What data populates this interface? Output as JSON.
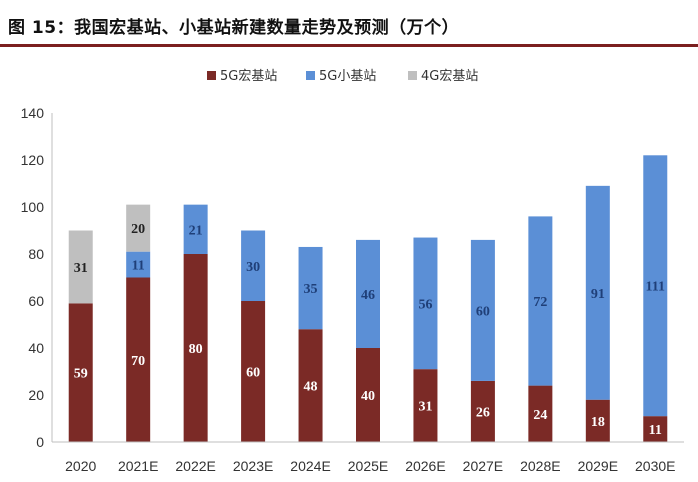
{
  "figure": {
    "title": "图 15：我国宏基站、小基站新建数量走势及预测（万个）"
  },
  "chart_data": {
    "type": "bar",
    "stacked": true,
    "categories": [
      "2020",
      "2021E",
      "2022E",
      "2023E",
      "2024E",
      "2025E",
      "2026E",
      "2027E",
      "2028E",
      "2029E",
      "2030E"
    ],
    "series": [
      {
        "name": "5G宏基站",
        "color": "#7b2a26",
        "values": [
          59,
          70,
          80,
          60,
          48,
          40,
          31,
          26,
          24,
          18,
          11
        ]
      },
      {
        "name": "5G小基站",
        "color": "#5b8fd6",
        "values": [
          0,
          11,
          21,
          30,
          35,
          46,
          56,
          60,
          72,
          91,
          111
        ]
      },
      {
        "name": "4G宏基站",
        "color": "#bfbfbf",
        "values": [
          31,
          20,
          0,
          0,
          0,
          0,
          0,
          0,
          0,
          0,
          0
        ]
      }
    ],
    "ylim": [
      0,
      140
    ],
    "yticks": [
      0,
      20,
      40,
      60,
      80,
      100,
      120,
      140
    ],
    "legend_position": "top-center",
    "grid": false
  }
}
